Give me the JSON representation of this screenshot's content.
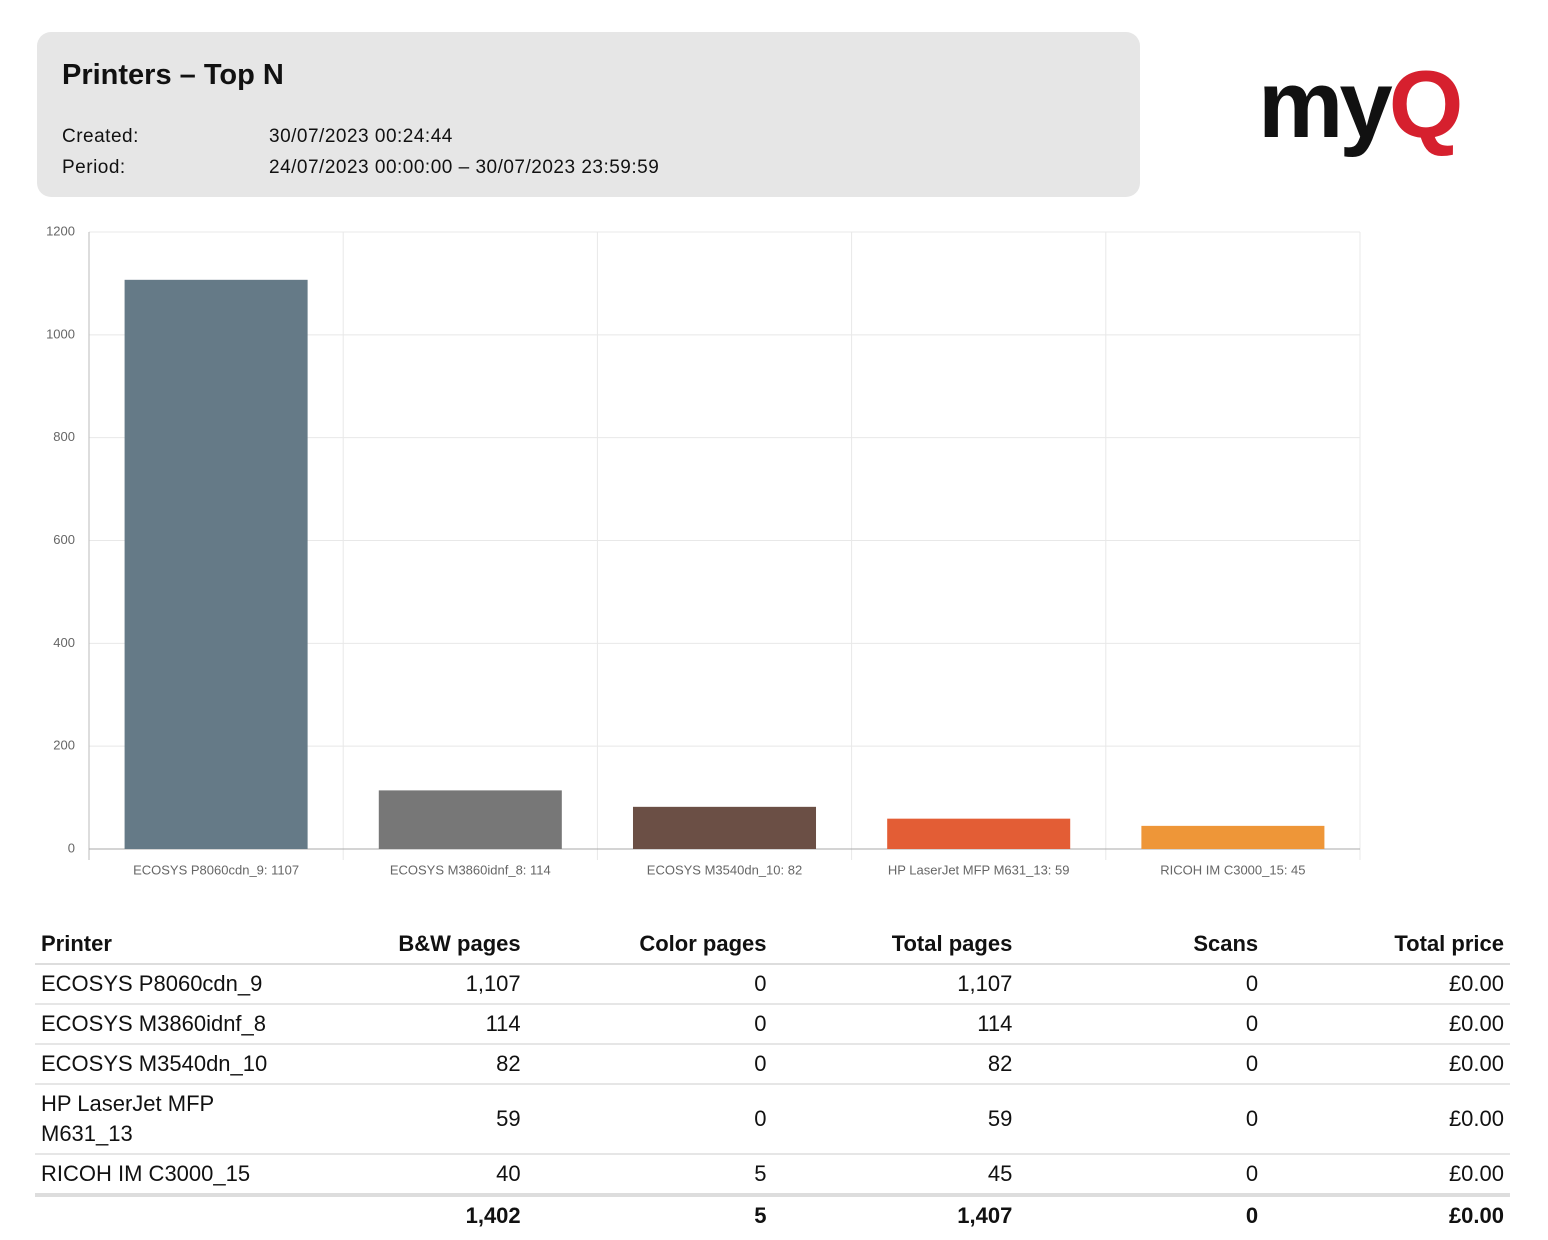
{
  "header": {
    "title": "Printers – Top N",
    "created_label": "Created:",
    "created_value": "30/07/2023 00:24:44",
    "period_label": "Period:",
    "period_value": "24/07/2023 00:00:00 – 30/07/2023 23:59:59"
  },
  "logo": {
    "parts": [
      "my",
      "Q"
    ]
  },
  "chart_data": {
    "type": "bar",
    "categories": [
      "ECOSYS P8060cdn_9: 1107",
      "ECOSYS M3860idnf_8: 114",
      "ECOSYS M3540dn_10: 82",
      "HP LaserJet MFP M631_13: 59",
      "RICOH IM C3000_15: 45"
    ],
    "values": [
      1107,
      114,
      82,
      59,
      45
    ],
    "colors": [
      "#657a87",
      "#777777",
      "#6b4f45",
      "#e35d35",
      "#ee9638"
    ],
    "ylim": [
      0,
      1200
    ],
    "yticks": [
      0,
      200,
      400,
      600,
      800,
      1000,
      1200
    ],
    "grid": true
  },
  "table": {
    "columns": [
      "Printer",
      "B&W pages",
      "Color pages",
      "Total pages",
      "Scans",
      "Total price"
    ],
    "rows": [
      [
        "ECOSYS P8060cdn_9",
        "1,107",
        "0",
        "1,107",
        "0",
        "£0.00"
      ],
      [
        "ECOSYS M3860idnf_8",
        "114",
        "0",
        "114",
        "0",
        "£0.00"
      ],
      [
        "ECOSYS M3540dn_10",
        "82",
        "0",
        "82",
        "0",
        "£0.00"
      ],
      [
        "HP LaserJet MFP M631_13",
        "59",
        "0",
        "59",
        "0",
        "£0.00"
      ],
      [
        "RICOH IM C3000_15",
        "40",
        "5",
        "45",
        "0",
        "£0.00"
      ]
    ],
    "totals": [
      "1,402",
      "5",
      "1,407",
      "0",
      "£0.00"
    ]
  }
}
